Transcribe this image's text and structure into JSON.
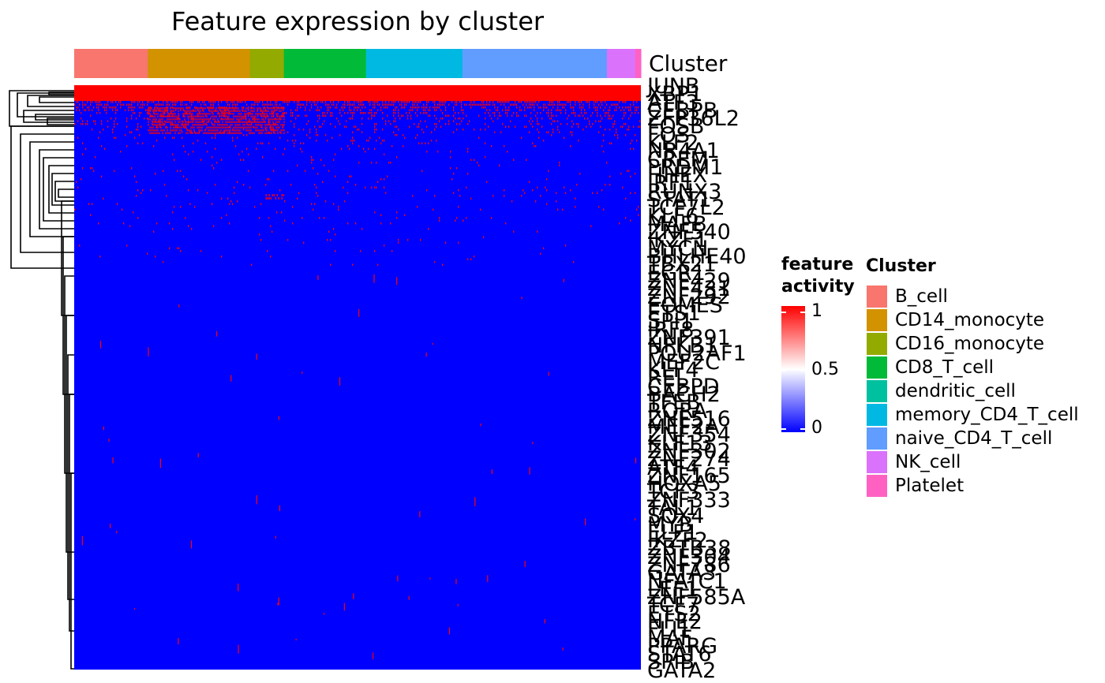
{
  "chart_data": {
    "type": "heatmap",
    "title": "Feature expression by cluster",
    "annotation_name": "Cluster",
    "row_labels": [
      "JUNB",
      "XBP1",
      "ATF3",
      "CEBPB",
      "ZFP36L2",
      "FOSB",
      "FOS",
      "KLF2",
      "NR4A1",
      "CREM",
      "PRDM1",
      "HHEX",
      "IRF1",
      "RUNX3",
      "STAT1",
      "TCF7L2",
      "KLF6",
      "MAFB",
      "ZNF540",
      "IKZF1",
      "MYCN",
      "BHLHE40",
      "TBX21",
      "EGR1",
      "ZNF429",
      "ZNF431",
      "ZNF292",
      "EOMES",
      "ETS1",
      "SPI1",
      "IRF8",
      "ZNF391",
      "NFKB1",
      "POU2AF1",
      "MEF2C",
      "KLF4",
      "REL",
      "CEBPD",
      "BACH2",
      "TFEB",
      "RORA",
      "ZNF516",
      "MEF2A",
      "ZNF354",
      "KLF13",
      "ZNF302",
      "ZNF274",
      "ATF4",
      "ZNF165",
      "HOXA5",
      "TCF3",
      "ZNF333",
      "TAL1",
      "SOX4",
      "MYB",
      "ELF1",
      "IKZF2",
      "ZBTB38",
      "ZNF304",
      "ZNF786",
      "GATA3",
      "NFATC1",
      "LEF1",
      "ZNF585A",
      "TCF7",
      "ETS2",
      "NFE2",
      "FLI1",
      "MAF",
      "PPARG",
      "STAT6",
      "SPIB",
      "GATA2"
    ],
    "legend_continuous": {
      "title": "feature\nactivity",
      "ticks": [
        "1",
        "0.5",
        "0"
      ],
      "values": [
        1,
        0.5,
        0
      ],
      "colors": [
        "#FF0000",
        "#FFFFFF",
        "#0000FF"
      ]
    },
    "legend_categorical": {
      "title": "Cluster",
      "items": [
        {
          "name": "B_cell",
          "color": "#F8766D"
        },
        {
          "name": "CD14_monocyte",
          "color": "#D39200"
        },
        {
          "name": "CD16_monocyte",
          "color": "#93AA00"
        },
        {
          "name": "CD8_T_cell",
          "color": "#00BA38"
        },
        {
          "name": "dendritic_cell",
          "color": "#00C19F"
        },
        {
          "name": "memory_CD4_T_cell",
          "color": "#00B9E3"
        },
        {
          "name": "naive_CD4_T_cell",
          "color": "#619CFF"
        },
        {
          "name": "NK_cell",
          "color": "#DB72FB"
        },
        {
          "name": "Platelet",
          "color": "#FF61C3"
        }
      ]
    },
    "column_clusters": [
      {
        "cluster": "B_cell",
        "fraction": 0.13
      },
      {
        "cluster": "CD14_monocyte",
        "fraction": 0.18
      },
      {
        "cluster": "CD16_monocyte",
        "fraction": 0.06
      },
      {
        "cluster": "CD8_T_cell",
        "fraction": 0.145
      },
      {
        "cluster": "memory_CD4_T_cell",
        "fraction": 0.17
      },
      {
        "cluster": "naive_CD4_T_cell",
        "fraction": 0.255
      },
      {
        "cluster": "NK_cell",
        "fraction": 0.05
      },
      {
        "cluster": "Platelet",
        "fraction": 0.01
      }
    ]
  }
}
